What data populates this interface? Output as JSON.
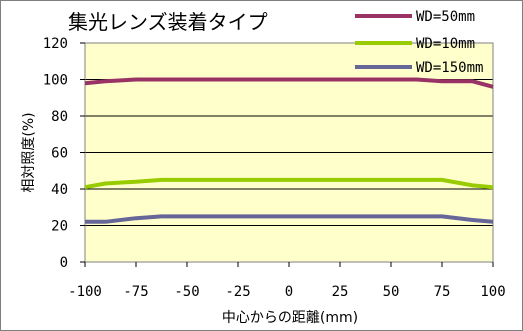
{
  "chart_data": {
    "type": "line",
    "title": "集光レンズ装着タイプ",
    "xlabel": "中心からの距離(mm)",
    "ylabel": "相対照度(%)",
    "xlim": [
      -100,
      100
    ],
    "ylim": [
      0,
      120
    ],
    "x_ticks": [
      "-100",
      "-75",
      "-50",
      "-25",
      "0",
      "25",
      "50",
      "75",
      "100"
    ],
    "y_ticks": [
      "0",
      "20",
      "40",
      "60",
      "80",
      "100",
      "120"
    ],
    "grid": "horizontal",
    "legend_position": "top-right",
    "plot_background": "#ffffcc",
    "series": [
      {
        "name": "WD=50mm",
        "color": "#993366",
        "x": [
          -100,
          -90,
          -75,
          -62.5,
          -50,
          -25,
          0,
          25,
          50,
          62.5,
          75,
          90,
          100
        ],
        "y": [
          98,
          99,
          100,
          100,
          100,
          100,
          100,
          100,
          100,
          100,
          99,
          99,
          96
        ]
      },
      {
        "name": "WD=10mm",
        "color": "#99cc00",
        "x": [
          -100,
          -90,
          -75,
          -62.5,
          -50,
          -25,
          0,
          25,
          50,
          62.5,
          75,
          90,
          100
        ],
        "y": [
          41,
          43,
          44,
          45,
          45,
          45,
          45,
          45,
          45,
          45,
          45,
          42,
          41
        ]
      },
      {
        "name": "WD=150mm",
        "color": "#666699",
        "x": [
          -100,
          -90,
          -75,
          -62.5,
          -50,
          -25,
          0,
          25,
          50,
          62.5,
          75,
          90,
          100
        ],
        "y": [
          22,
          22,
          24,
          25,
          25,
          25,
          25,
          25,
          25,
          25,
          25,
          23,
          22
        ]
      }
    ]
  }
}
